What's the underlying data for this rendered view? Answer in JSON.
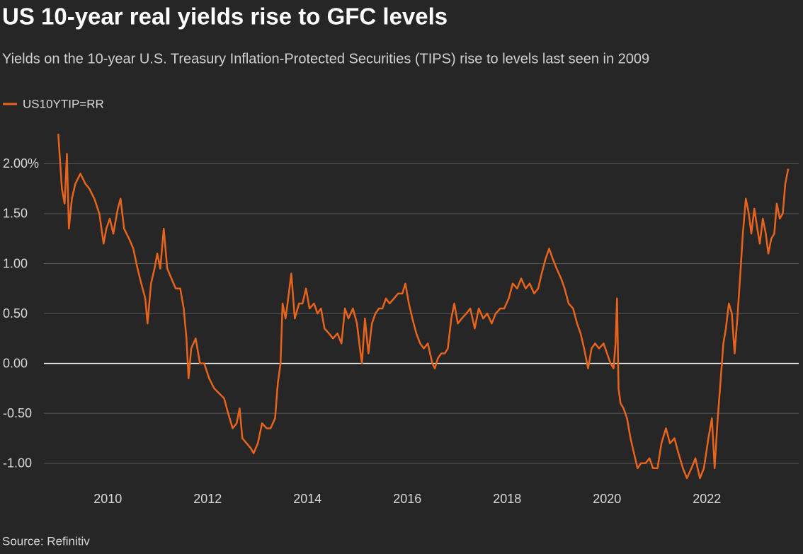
{
  "chart_data": {
    "type": "line",
    "title": "US 10-year real yields rise to GFC levels",
    "subtitle": "Yields on the 10-year U.S. Treasury Inflation-Protected Securities (TIPS) rise to levels last seen in 2009",
    "source": "Source: Refinitiv",
    "x": [
      2009.007,
      2009.08,
      2009.135,
      2009.18,
      2009.22,
      2009.28,
      2009.35,
      2009.45,
      2009.55,
      2009.63,
      2009.73,
      2009.83,
      2009.915,
      2009.97,
      2010.04,
      2010.11,
      2010.2,
      2010.255,
      2010.325,
      2010.425,
      2010.51,
      2010.595,
      2010.67,
      2010.75,
      2010.795,
      2010.865,
      2010.935,
      2010.99,
      2011.05,
      2011.12,
      2011.19,
      2011.275,
      2011.36,
      2011.45,
      2011.52,
      2011.575,
      2011.617,
      2011.67,
      2011.76,
      2011.845,
      2011.93,
      2012.03,
      2012.13,
      2012.23,
      2012.33,
      2012.41,
      2012.5,
      2012.58,
      2012.64,
      2012.695,
      2012.78,
      2012.865,
      2012.92,
      2013.005,
      2013.09,
      2013.18,
      2013.26,
      2013.35,
      2013.405,
      2013.46,
      2013.5,
      2013.56,
      2013.6,
      2013.675,
      2013.745,
      2013.83,
      2013.9,
      2013.97,
      2014.04,
      2014.13,
      2014.2,
      2014.27,
      2014.34,
      2014.43,
      2014.51,
      2014.6,
      2014.68,
      2014.75,
      2014.82,
      2014.91,
      2014.99,
      2015.05,
      2015.09,
      2015.15,
      2015.22,
      2015.29,
      2015.36,
      2015.43,
      2015.5,
      2015.57,
      2015.645,
      2015.73,
      2015.815,
      2015.9,
      2015.96,
      2016.03,
      2016.1,
      2016.18,
      2016.255,
      2016.33,
      2016.41,
      2016.5,
      2016.55,
      2016.61,
      2016.68,
      2016.75,
      2016.81,
      2016.88,
      2016.94,
      2017.01,
      2017.09,
      2017.18,
      2017.26,
      2017.35,
      2017.43,
      2017.52,
      2017.6,
      2017.69,
      2017.77,
      2017.86,
      2017.94,
      2018.03,
      2018.11,
      2018.2,
      2018.28,
      2018.37,
      2018.45,
      2018.54,
      2018.62,
      2018.69,
      2018.77,
      2018.84,
      2018.91,
      2018.99,
      2019.08,
      2019.15,
      2019.23,
      2019.32,
      2019.4,
      2019.47,
      2019.54,
      2019.62,
      2019.69,
      2019.76,
      2019.84,
      2019.93,
      2020.0,
      2020.07,
      2020.13,
      2020.17,
      2020.2,
      2020.23,
      2020.27,
      2020.33,
      2020.4,
      2020.47,
      2020.54,
      2020.61,
      2020.68,
      2020.77,
      2020.85,
      2020.92,
      2021.01,
      2021.09,
      2021.18,
      2021.26,
      2021.35,
      2021.43,
      2021.52,
      2021.6,
      2021.69,
      2021.77,
      2021.86,
      2021.94,
      2022.03,
      2022.1,
      2022.155,
      2022.21,
      2022.27,
      2022.33,
      2022.38,
      2022.44,
      2022.5,
      2022.555,
      2022.61,
      2022.67,
      2022.72,
      2022.78,
      2022.84,
      2022.89,
      2022.95,
      2023.01,
      2023.06,
      2023.12,
      2023.18,
      2023.23,
      2023.29,
      2023.35,
      2023.4,
      2023.46,
      2023.52,
      2023.57,
      2023.63
    ],
    "series": [
      {
        "name": "US10YTIP=RR",
        "color": "#e8641b",
        "values": [
          2.3,
          1.75,
          1.6,
          2.1,
          1.35,
          1.65,
          1.8,
          1.9,
          1.8,
          1.75,
          1.65,
          1.5,
          1.2,
          1.35,
          1.45,
          1.3,
          1.55,
          1.65,
          1.35,
          1.25,
          1.15,
          0.95,
          0.8,
          0.65,
          0.4,
          0.8,
          0.95,
          1.1,
          0.95,
          1.35,
          0.95,
          0.85,
          0.75,
          0.75,
          0.55,
          0.25,
          -0.15,
          0.15,
          0.25,
          0.0,
          0.0,
          -0.15,
          -0.25,
          -0.3,
          -0.35,
          -0.5,
          -0.65,
          -0.6,
          -0.45,
          -0.75,
          -0.8,
          -0.85,
          -0.9,
          -0.8,
          -0.6,
          -0.65,
          -0.65,
          -0.55,
          -0.2,
          0.0,
          0.6,
          0.45,
          0.6,
          0.9,
          0.45,
          0.6,
          0.6,
          0.75,
          0.55,
          0.6,
          0.5,
          0.55,
          0.35,
          0.3,
          0.25,
          0.3,
          0.2,
          0.55,
          0.45,
          0.55,
          0.4,
          0.15,
          0.0,
          0.45,
          0.1,
          0.4,
          0.5,
          0.55,
          0.55,
          0.65,
          0.6,
          0.65,
          0.7,
          0.7,
          0.8,
          0.6,
          0.45,
          0.3,
          0.2,
          0.15,
          0.2,
          0.0,
          -0.05,
          0.05,
          0.1,
          0.1,
          0.15,
          0.45,
          0.6,
          0.4,
          0.45,
          0.5,
          0.55,
          0.35,
          0.55,
          0.45,
          0.5,
          0.4,
          0.5,
          0.55,
          0.55,
          0.65,
          0.8,
          0.75,
          0.85,
          0.75,
          0.8,
          0.7,
          0.75,
          0.9,
          1.05,
          1.15,
          1.05,
          0.95,
          0.85,
          0.75,
          0.6,
          0.55,
          0.4,
          0.3,
          0.15,
          -0.05,
          0.15,
          0.2,
          0.15,
          0.2,
          0.1,
          0.0,
          -0.05,
          0.2,
          0.65,
          -0.25,
          -0.4,
          -0.45,
          -0.55,
          -0.75,
          -0.9,
          -1.05,
          -1.0,
          -1.0,
          -0.95,
          -1.05,
          -1.05,
          -0.8,
          -0.65,
          -0.8,
          -0.75,
          -0.9,
          -1.05,
          -1.15,
          -1.05,
          -0.95,
          -1.15,
          -1.05,
          -0.75,
          -0.55,
          -1.05,
          -0.6,
          -0.2,
          0.2,
          0.35,
          0.6,
          0.5,
          0.1,
          0.45,
          0.9,
          1.3,
          1.65,
          1.5,
          1.3,
          1.55,
          1.35,
          1.2,
          1.45,
          1.3,
          1.1,
          1.25,
          1.3,
          1.6,
          1.45,
          1.5,
          1.8,
          1.95
        ]
      }
    ],
    "xlim": [
      2007.84,
      2023.84
    ],
    "xticks": [
      2010,
      2012,
      2014,
      2016,
      2018,
      2020,
      2022
    ],
    "ylim": [
      -1.25,
      2.4
    ],
    "yticks": [
      {
        "value": 2,
        "label": "2.00%"
      },
      {
        "value": 1.5,
        "label": "1.50"
      },
      {
        "value": 1,
        "label": "1.00"
      },
      {
        "value": 0.5,
        "label": "0.50"
      },
      {
        "value": 0,
        "label": "0.00"
      },
      {
        "value": -0.5,
        "label": "-0.50"
      },
      {
        "value": -1,
        "label": "-1.00"
      }
    ],
    "grid": true
  }
}
